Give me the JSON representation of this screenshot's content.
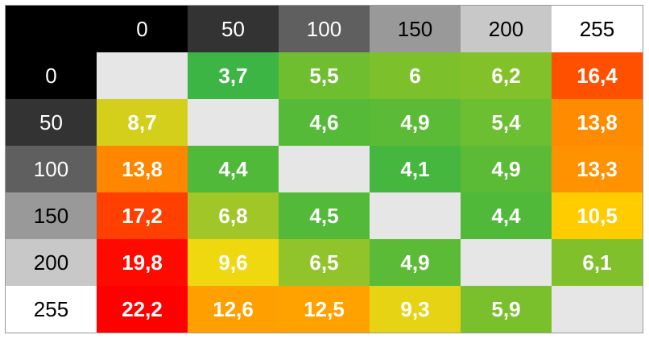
{
  "table": {
    "corner_color": "#000000",
    "header": [
      "0",
      "50",
      "100",
      "150",
      "200",
      "255"
    ],
    "header_colors": [
      "#000000",
      "#333333",
      "#5f5f5f",
      "#999999",
      "#c8c8c8",
      "#ffffff"
    ],
    "empty_color": "#e6e6e6",
    "rows": [
      {
        "label": "0",
        "cells": [
          null,
          "3,7",
          "5,5",
          "6",
          "6,2",
          "16,4"
        ],
        "colors": [
          null,
          "#3cb544",
          "#6fbe30",
          "#7cc12c",
          "#82c12a",
          "#ff5000"
        ]
      },
      {
        "label": "50",
        "cells": [
          "8,7",
          null,
          "4,6",
          "4,9",
          "5,4",
          "13,8"
        ],
        "colors": [
          "#d3cf1b",
          null,
          "#54ba38",
          "#5cbb36",
          "#6cbf30",
          "#ff8c00"
        ]
      },
      {
        "label": "100",
        "cells": [
          "13,8",
          "4,4",
          null,
          "4,1",
          "4,9",
          "13,3"
        ],
        "colors": [
          "#ff8700",
          "#50b93a",
          null,
          "#46b73e",
          "#5cbb36",
          "#ff9200"
        ]
      },
      {
        "label": "150",
        "cells": [
          "17,2",
          "6,8",
          "4,5",
          null,
          "4,4",
          "10,5"
        ],
        "colors": [
          "#ff4000",
          "#a0c628",
          "#52ba38",
          null,
          "#50b93a",
          "#ffcc00"
        ]
      },
      {
        "label": "200",
        "cells": [
          "19,8",
          "9,6",
          "6,5",
          "4,9",
          null,
          "6,1"
        ],
        "colors": [
          "#ff0a00",
          "#f0d810",
          "#90c42a",
          "#5cbb36",
          null,
          "#80c12b"
        ]
      },
      {
        "label": "255",
        "cells": [
          "22,2",
          "12,6",
          "12,5",
          "9,3",
          "5,9",
          null
        ],
        "colors": [
          "#ff0000",
          "#ffa000",
          "#ffa200",
          "#e6d414",
          "#7ac02d",
          null
        ]
      }
    ]
  }
}
